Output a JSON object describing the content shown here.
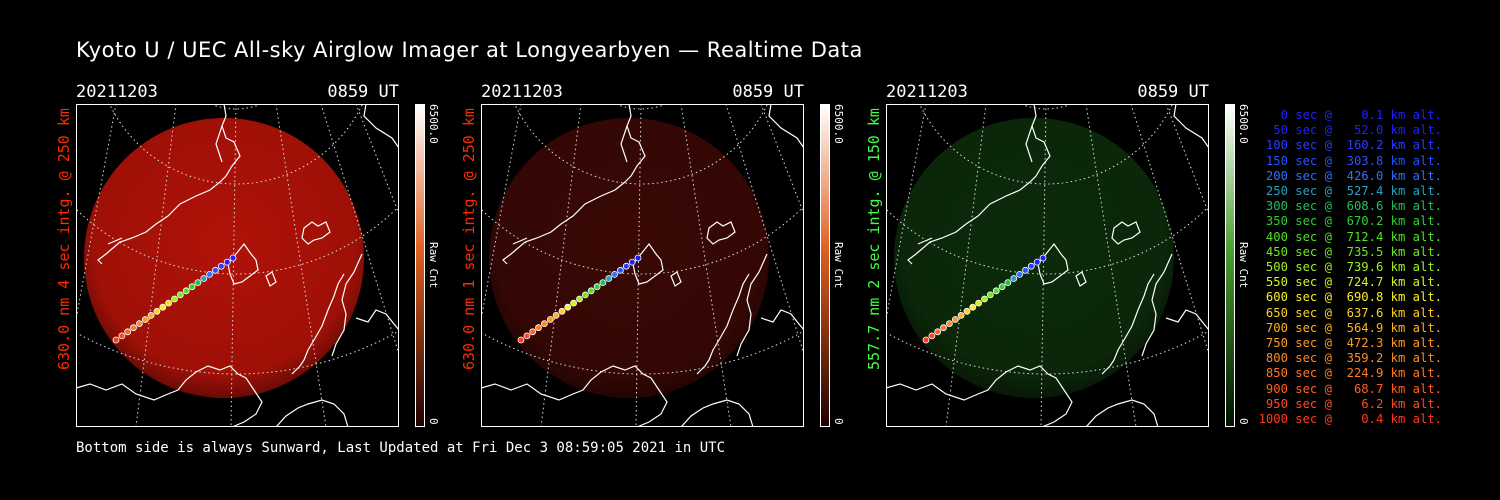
{
  "title": "Kyoto U / UEC All-sky Airglow Imager at Longyearbyen — Realtime Data",
  "footer": "Bottom side is always Sunward, Last Updated at Fri Dec  3 08:59:05 2021 in UTC",
  "panels": [
    {
      "date": "20211203",
      "time": "0859 UT",
      "side_label": "630.0 nm 4 sec intg. @ 250 km",
      "side_color": "#ff2a00",
      "colorbar_max": "6500.0",
      "colorbar_min": "0",
      "colorbar_unit": "Raw Cnt",
      "glow_color": "#b01208",
      "colorbar_top": "#ffffff",
      "colorbar_mid": "#e06020",
      "colorbar_bot": "#200000"
    },
    {
      "date": "20211203",
      "time": "0859 UT",
      "side_label": "630.0 nm 1 sec intg. @ 250 km",
      "side_color": "#ff2a00",
      "colorbar_max": "6500.0",
      "colorbar_min": "0",
      "colorbar_unit": "Raw Cnt",
      "glow_color": "#3a0805",
      "colorbar_top": "#ffffff",
      "colorbar_mid": "#e06020",
      "colorbar_bot": "#200000"
    },
    {
      "date": "20211203",
      "time": "0859 UT",
      "side_label": "557.7 nm 2 sec intg. @ 150 km",
      "side_color": "#40ff40",
      "colorbar_max": "6500.0",
      "colorbar_min": "0",
      "colorbar_unit": "Raw Cnt",
      "glow_color": "#0c2a0a",
      "colorbar_top": "#ffffff",
      "colorbar_mid": "#4aa030",
      "colorbar_bot": "#001000"
    }
  ],
  "legend": [
    {
      "text": "   0 sec @    0.1 km alt.",
      "color": "#2020ff"
    },
    {
      "text": "  50 sec @   52.0 km alt.",
      "color": "#2020ff"
    },
    {
      "text": " 100 sec @  160.2 km alt.",
      "color": "#2a3cff"
    },
    {
      "text": " 150 sec @  303.8 km alt.",
      "color": "#2a50ff"
    },
    {
      "text": " 200 sec @  426.0 km alt.",
      "color": "#3070ff"
    },
    {
      "text": " 250 sec @  527.4 km alt.",
      "color": "#2aa0c0"
    },
    {
      "text": " 300 sec @  608.6 km alt.",
      "color": "#20c060"
    },
    {
      "text": " 350 sec @  670.2 km alt.",
      "color": "#30d030"
    },
    {
      "text": " 400 sec @  712.4 km alt.",
      "color": "#50e020"
    },
    {
      "text": " 450 sec @  735.5 km alt.",
      "color": "#70e820"
    },
    {
      "text": " 500 sec @  739.6 km alt.",
      "color": "#a0f020"
    },
    {
      "text": " 550 sec @  724.7 km alt.",
      "color": "#d8f020"
    },
    {
      "text": " 600 sec @  690.8 km alt.",
      "color": "#f8f020"
    },
    {
      "text": " 650 sec @  637.6 km alt.",
      "color": "#ffd020"
    },
    {
      "text": " 700 sec @  564.9 km alt.",
      "color": "#ffb020"
    },
    {
      "text": " 750 sec @  472.3 km alt.",
      "color": "#ff9a20"
    },
    {
      "text": " 800 sec @  359.2 km alt.",
      "color": "#ff8a20"
    },
    {
      "text": " 850 sec @  224.9 km alt.",
      "color": "#ff7a20"
    },
    {
      "text": " 900 sec @   68.7 km alt.",
      "color": "#ff6020"
    },
    {
      "text": " 950 sec @    6.2 km alt.",
      "color": "#ff4a20"
    },
    {
      "text": "1000 sec @    0.4 km alt.",
      "color": "#ff3a20"
    }
  ]
}
